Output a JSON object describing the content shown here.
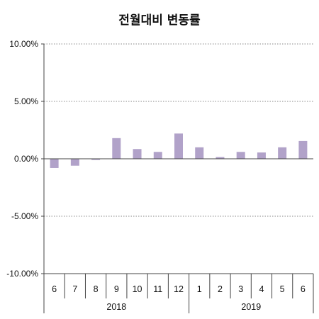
{
  "chart_data": {
    "type": "bar",
    "title": "전월대비 변동률",
    "categories": [
      "6",
      "7",
      "8",
      "9",
      "10",
      "11",
      "12",
      "1",
      "2",
      "3",
      "4",
      "5",
      "6"
    ],
    "groups": [
      {
        "label": "2018",
        "count": 7
      },
      {
        "label": "2019",
        "count": 6
      }
    ],
    "values": [
      -0.8,
      -0.6,
      -0.1,
      1.8,
      0.85,
      0.6,
      2.2,
      1.0,
      0.15,
      0.6,
      0.55,
      1.0,
      1.55
    ],
    "y_ticks": [
      "10.00%",
      "5.00%",
      "0.00%",
      "-5.00%",
      "-10.00%"
    ],
    "ylim": [
      -10,
      10
    ],
    "gridlines": true,
    "bar_color": "#b1a2c9"
  }
}
